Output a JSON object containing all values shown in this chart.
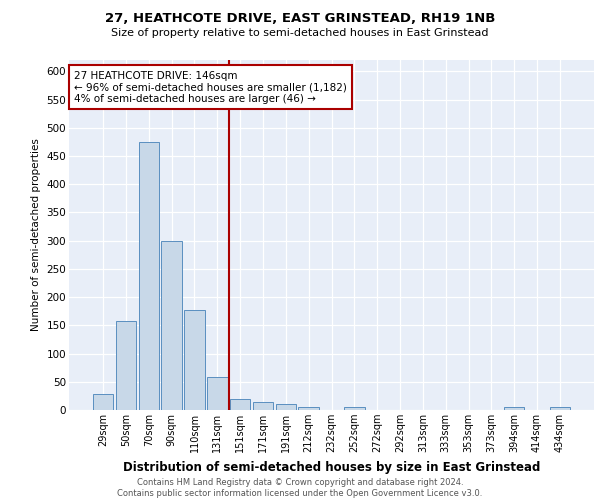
{
  "title": "27, HEATHCOTE DRIVE, EAST GRINSTEAD, RH19 1NB",
  "subtitle": "Size of property relative to semi-detached houses in East Grinstead",
  "xlabel": "Distribution of semi-detached houses by size in East Grinstead",
  "ylabel": "Number of semi-detached properties",
  "footer1": "Contains HM Land Registry data © Crown copyright and database right 2024.",
  "footer2": "Contains public sector information licensed under the Open Government Licence v3.0.",
  "annotation_line1": "27 HEATHCOTE DRIVE: 146sqm",
  "annotation_line2": "← 96% of semi-detached houses are smaller (1,182)",
  "annotation_line3": "4% of semi-detached houses are larger (46) →",
  "bar_color": "#c8d8e8",
  "bar_edge_color": "#5a8fc0",
  "highlight_color": "#aa0000",
  "bg_color": "#e8eef8",
  "categories": [
    "29sqm",
    "50sqm",
    "70sqm",
    "90sqm",
    "110sqm",
    "131sqm",
    "151sqm",
    "171sqm",
    "191sqm",
    "212sqm",
    "232sqm",
    "252sqm",
    "272sqm",
    "292sqm",
    "313sqm",
    "333sqm",
    "353sqm",
    "373sqm",
    "394sqm",
    "414sqm",
    "434sqm"
  ],
  "values": [
    28,
    157,
    475,
    299,
    177,
    59,
    20,
    15,
    10,
    5,
    0,
    6,
    0,
    0,
    0,
    0,
    0,
    0,
    5,
    0,
    5
  ],
  "red_line_x": 6,
  "ylim": [
    0,
    620
  ],
  "yticks": [
    0,
    50,
    100,
    150,
    200,
    250,
    300,
    350,
    400,
    450,
    500,
    550,
    600
  ]
}
